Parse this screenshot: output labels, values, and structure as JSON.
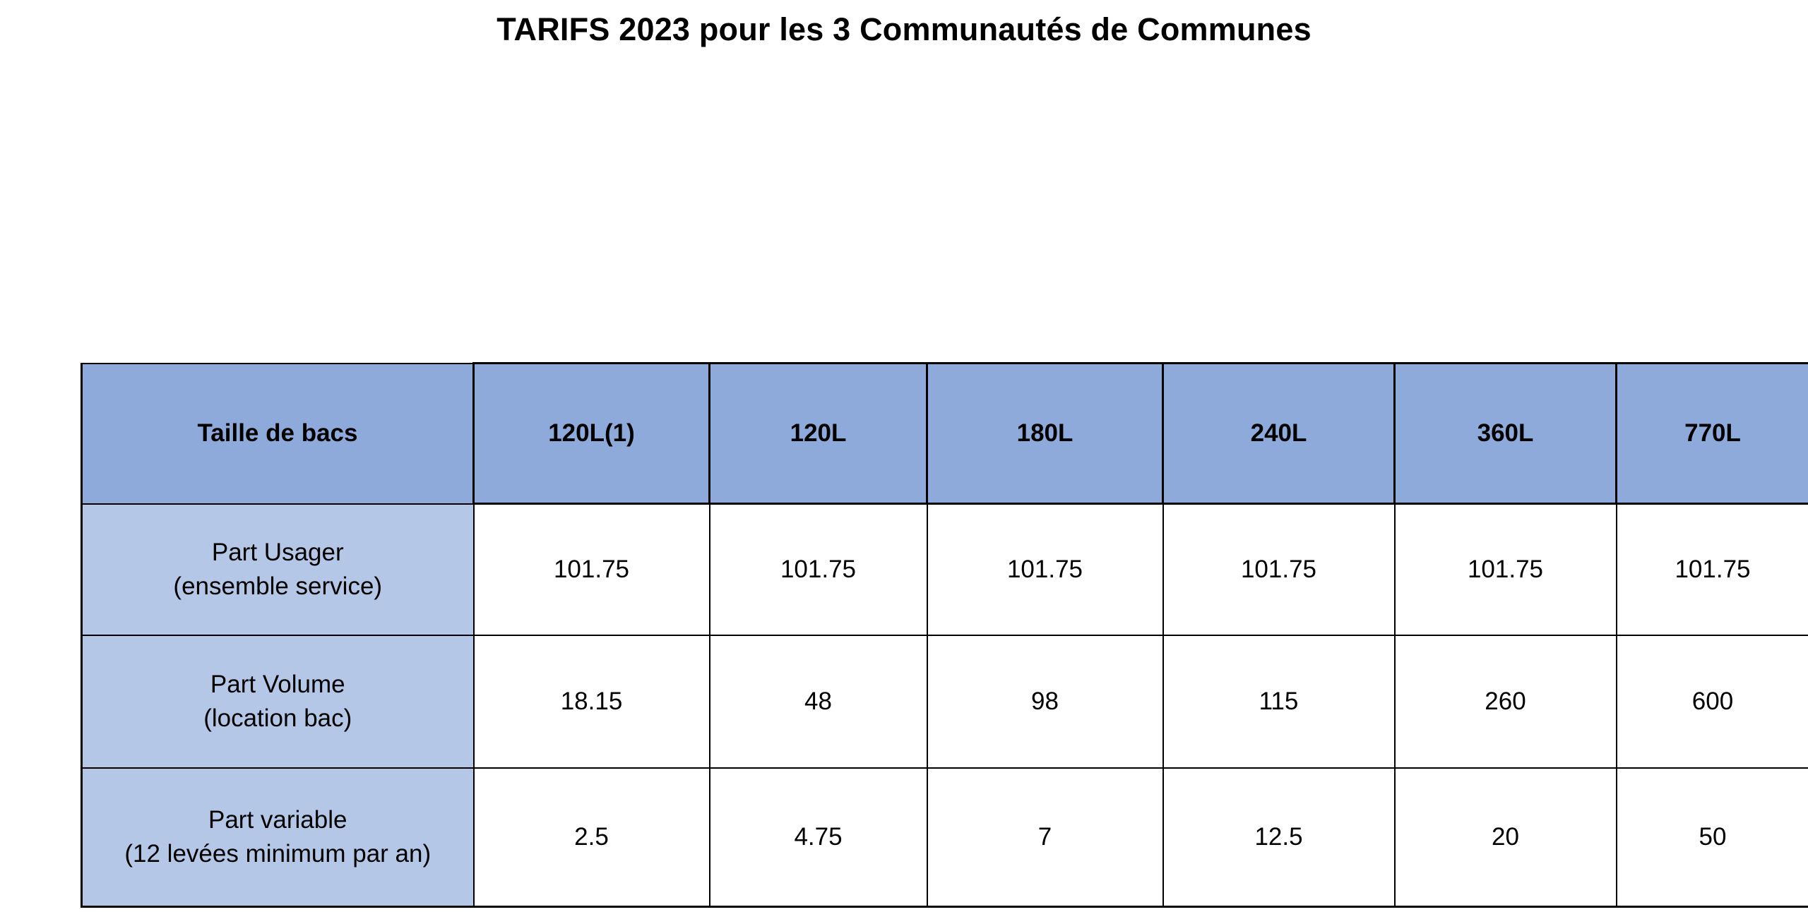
{
  "title": "TARIFS 2023 pour les 3 Communautés de Communes",
  "table": {
    "header_label": "Taille de bacs",
    "columns": [
      "120L(1)",
      "120L",
      "180L",
      "240L",
      "360L",
      "770L"
    ],
    "rows": [
      {
        "label_line1": "Part Usager",
        "label_line2": "(ensemble service)",
        "values": [
          "101.75",
          "101.75",
          "101.75",
          "101.75",
          "101.75",
          "101.75"
        ]
      },
      {
        "label_line1": "Part Volume",
        "label_line2": "(location bac)",
        "values": [
          "18.15",
          "48",
          "98",
          "115",
          "260",
          "600"
        ]
      },
      {
        "label_line1": "Part variable",
        "label_line2": "(12 levées minimum par an)",
        "values": [
          "2.5",
          "4.75",
          "7",
          "12.5",
          "20",
          "50"
        ]
      }
    ]
  },
  "colors": {
    "header_fill": "#8eaadb",
    "row_label_fill": "#b4c7e7",
    "cell_fill": "#ffffff",
    "border": "#000000"
  }
}
